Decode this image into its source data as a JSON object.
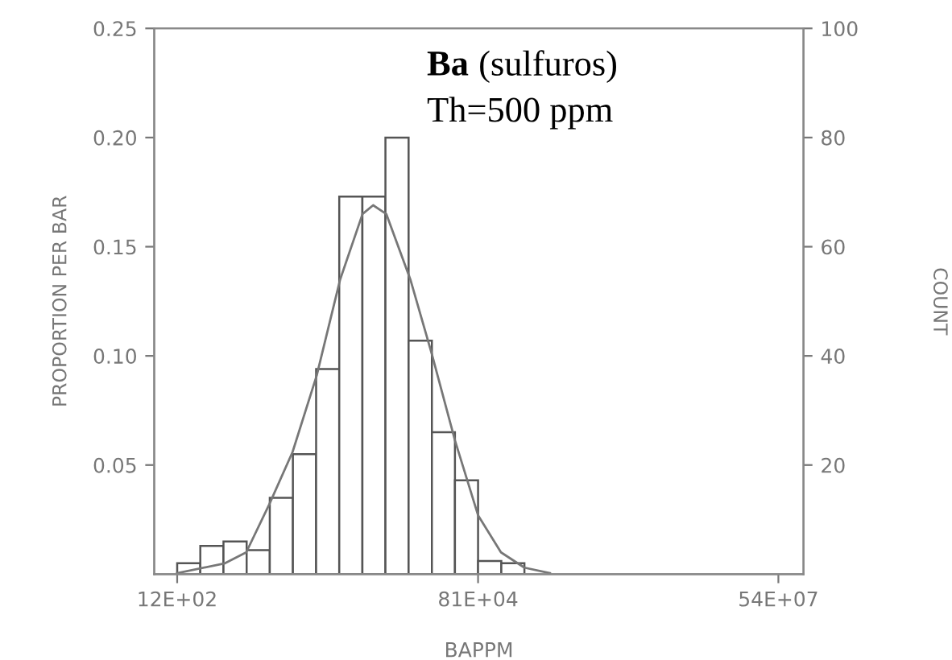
{
  "chart_data": {
    "type": "histogram",
    "xlabel": "BAPPM",
    "ylabel": "PROPORTION PER BAR",
    "y2label": "COUNT",
    "color": "#ffffff",
    "annotations": [
      "Ba (sulfuros)",
      "Th=500 ppm"
    ],
    "bins": [
      1200,
      1980,
      3270,
      5400,
      8910,
      14700,
      24300,
      40100,
      66200,
      109000,
      180000,
      298000,
      491000,
      810000,
      1340000,
      2210000
    ],
    "values": [
      0.005,
      0.013,
      0.015,
      0.011,
      0.035,
      0.055,
      0.094,
      0.173,
      0.173,
      0.2,
      0.107,
      0.065,
      0.043,
      0.006,
      0.005
    ],
    "series": [
      {
        "type": "line",
        "color": "#777777",
        "x": [
          1200,
          3380,
          5350,
          8810,
          14600,
          24600,
          40900,
          66400,
          83600,
          111000,
          187000,
          297000,
          493000,
          810000,
          1330000,
          2210000,
          3840000
        ],
        "values": [
          0.0005,
          0.005,
          0.01,
          0.032,
          0.056,
          0.091,
          0.135,
          0.165,
          0.169,
          0.165,
          0.135,
          0.101,
          0.061,
          0.027,
          0.01,
          0.003,
          0.0005
        ]
      }
    ],
    "log": "x",
    "xlim": [
      730,
      930000000
    ],
    "xticks": [
      {
        "value": 1200,
        "label": "12E+02"
      },
      {
        "value": 810000,
        "label": "81E+04"
      },
      {
        "value": 540000000,
        "label": "54E+07"
      }
    ],
    "ylim": [
      0,
      0.25
    ],
    "yticks": [
      0.05,
      {
        "value": 0.1,
        "label": "0.10"
      },
      0.15,
      {
        "value": 0.2,
        "label": "0.20"
      },
      0.25
    ],
    "y2lim": [
      0,
      100
    ],
    "y2ticks": [
      20,
      40,
      60,
      80,
      100
    ],
    "grid": false
  }
}
